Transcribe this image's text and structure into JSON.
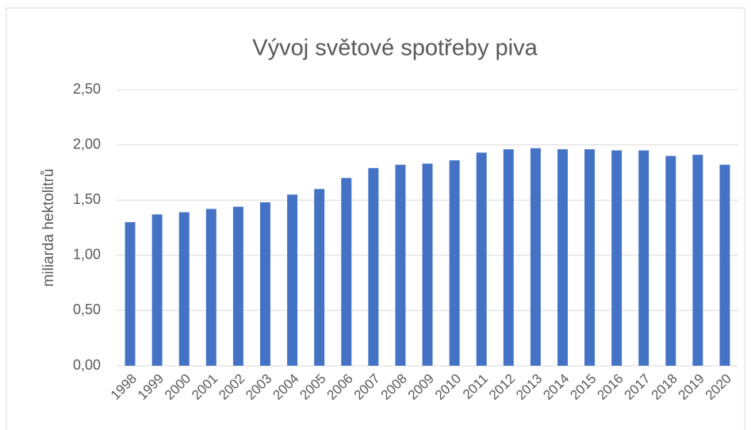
{
  "chart_data": {
    "type": "bar",
    "title": "Vývoj světové spotřeby piva",
    "y_label": "miliarda hektolitrů",
    "categories": [
      "1998",
      "1999",
      "2000",
      "2001",
      "2002",
      "2003",
      "2004",
      "2005",
      "2006",
      "2007",
      "2008",
      "2009",
      "2010",
      "2011",
      "2012",
      "2013",
      "2014",
      "2015",
      "2016",
      "2017",
      "2018",
      "2019",
      "2020"
    ],
    "values": [
      1.3,
      1.37,
      1.39,
      1.42,
      1.44,
      1.48,
      1.55,
      1.6,
      1.7,
      1.79,
      1.82,
      1.83,
      1.86,
      1.93,
      1.96,
      1.97,
      1.96,
      1.96,
      1.95,
      1.95,
      1.9,
      1.91,
      1.82
    ],
    "color": "#4472c4",
    "ylim": [
      0,
      2.5
    ],
    "yticks": [
      {
        "value": 0,
        "label": "0,00"
      },
      {
        "value": 0.5,
        "label": "0,50"
      },
      {
        "value": 1,
        "label": "1,00"
      },
      {
        "value": 1.5,
        "label": "1,50"
      },
      {
        "value": 2,
        "label": "2,00"
      },
      {
        "value": 2.5,
        "label": "2,50"
      }
    ],
    "grid": true
  }
}
